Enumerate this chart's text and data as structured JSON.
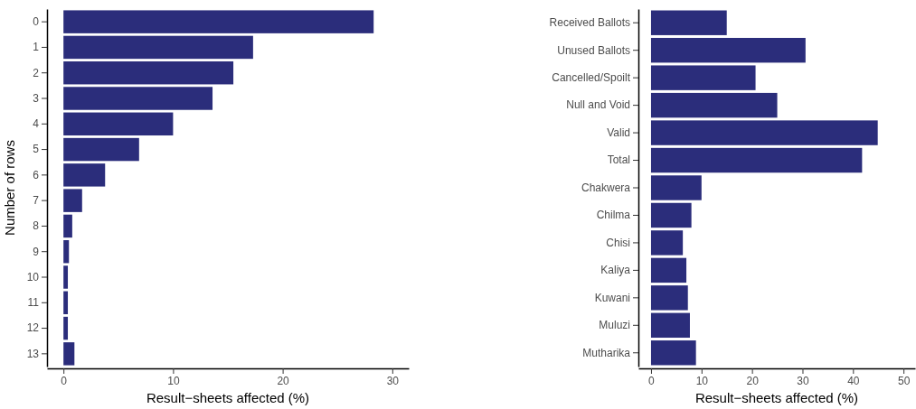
{
  "chart_data": [
    {
      "type": "bar",
      "orientation": "horizontal",
      "categories": [
        "0",
        "1",
        "2",
        "3",
        "4",
        "5",
        "6",
        "7",
        "8",
        "9",
        "10",
        "11",
        "12",
        "13"
      ],
      "values": [
        28.3,
        17.3,
        15.5,
        13.6,
        10.0,
        6.9,
        3.8,
        1.7,
        0.8,
        0.5,
        0.4,
        0.4,
        0.4,
        1.0
      ],
      "color": "#2b2d7b",
      "xlim": [
        -1.5,
        31.5
      ],
      "xticks": [
        0,
        10,
        20,
        30
      ],
      "xlabel": "Result−sheets affected (%)",
      "ylabel": "Number of rows",
      "grid": false
    },
    {
      "type": "bar",
      "orientation": "horizontal",
      "categories": [
        "Received Ballots",
        "Unused Ballots",
        "Cancelled/Spoilt",
        "Null and Void",
        "Valid",
        "Total",
        "Chakwera",
        "Chilma",
        "Chisi",
        "Kaliya",
        "Kuwani",
        "Muluzi",
        "Mutharika"
      ],
      "values": [
        15.0,
        30.6,
        20.7,
        25.0,
        44.9,
        41.8,
        10.0,
        8.0,
        6.3,
        7.0,
        7.3,
        7.7,
        8.9
      ],
      "color": "#2b2d7b",
      "xlim": [
        -2.5,
        52.3
      ],
      "xticks": [
        0,
        10,
        20,
        30,
        40,
        50
      ],
      "xlabel": "Result−sheets affected (%)",
      "grid": false
    }
  ]
}
